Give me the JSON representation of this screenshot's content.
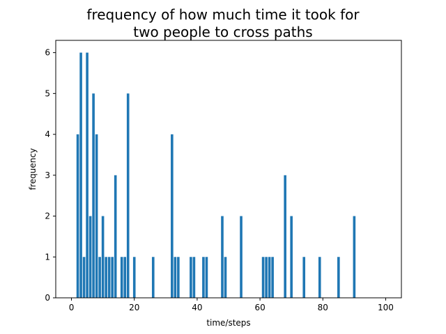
{
  "chart_data": {
    "type": "bar",
    "title_lines": [
      "frequency of how much time it took for",
      "two people to cross paths"
    ],
    "xlabel": "time/steps",
    "ylabel": "frequency",
    "xlim": [
      -5,
      105
    ],
    "ylim": [
      0,
      6.3
    ],
    "x_ticks": [
      0,
      20,
      40,
      60,
      80,
      100
    ],
    "y_ticks": [
      0,
      1,
      2,
      3,
      4,
      5,
      6
    ],
    "bar_color": "#1f77b4",
    "grid": false,
    "x": [
      2,
      3,
      4,
      5,
      6,
      7,
      8,
      9,
      10,
      11,
      12,
      13,
      14,
      16,
      17,
      18,
      20,
      26,
      32,
      33,
      34,
      38,
      39,
      42,
      43,
      48,
      49,
      54,
      61,
      62,
      63,
      64,
      68,
      70,
      74,
      79,
      85,
      90
    ],
    "values": [
      4,
      6,
      1,
      6,
      2,
      5,
      4,
      1,
      2,
      1,
      1,
      1,
      3,
      1,
      1,
      5,
      1,
      1,
      4,
      1,
      1,
      1,
      1,
      1,
      1,
      2,
      1,
      2,
      1,
      1,
      1,
      1,
      3,
      2,
      1,
      1,
      1,
      2
    ]
  }
}
